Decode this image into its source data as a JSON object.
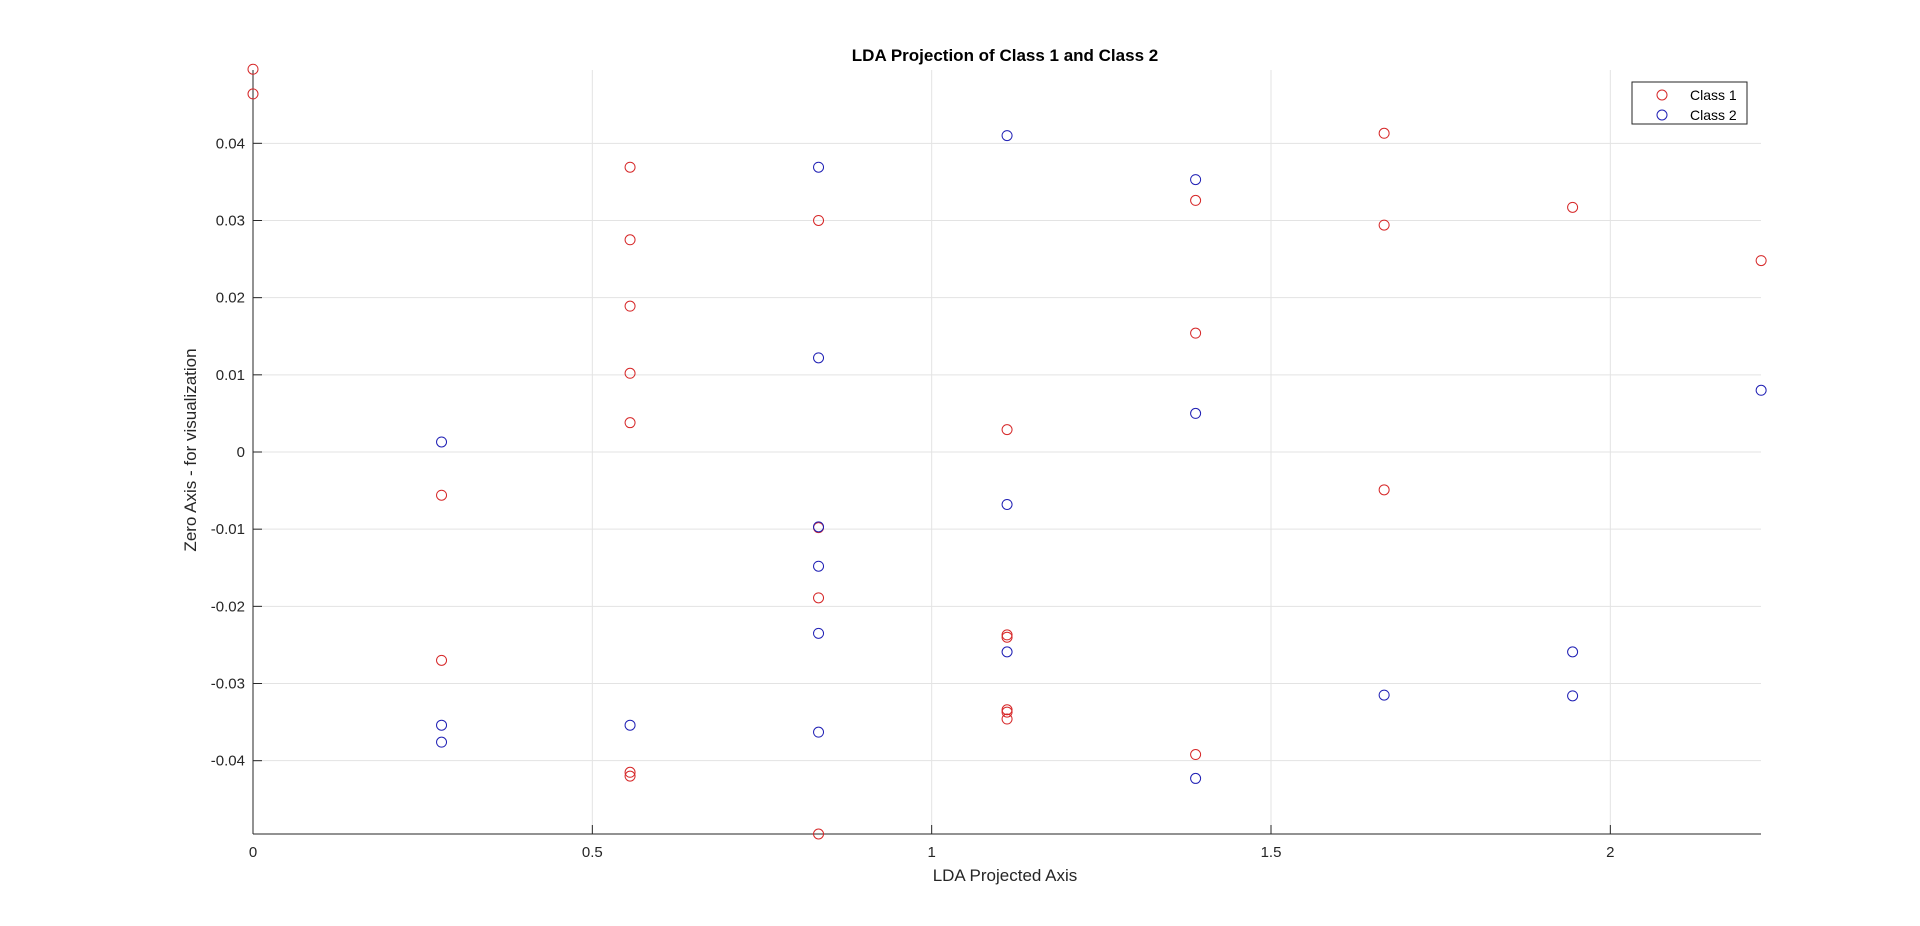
{
  "chart_data": {
    "type": "scatter",
    "title": "LDA Projection of Class 1 and Class 2",
    "xlabel": "LDA Projected Axis",
    "ylabel": "Zero Axis - for visualization",
    "xlim": [
      0,
      2.222
    ],
    "ylim": [
      -0.0495,
      0.0495
    ],
    "xticks": [
      0,
      0.5,
      1,
      1.5,
      2
    ],
    "xtick_labels": [
      "0",
      "0.5",
      "1",
      "1.5",
      "2"
    ],
    "yticks": [
      -0.04,
      -0.03,
      -0.02,
      -0.01,
      0,
      0.01,
      0.02,
      0.03,
      0.04
    ],
    "ytick_labels": [
      "-0.04",
      "-0.03",
      "-0.02",
      "-0.01",
      "0",
      "0.01",
      "0.02",
      "0.03",
      "0.04"
    ],
    "grid": true,
    "legend_position": "top-right",
    "marker": "open-circle",
    "series": [
      {
        "name": "Class 1",
        "color": "#d62728",
        "points": [
          [
            0,
            0.0496
          ],
          [
            0,
            0.0464
          ],
          [
            0.2778,
            -0.0056
          ],
          [
            0.2778,
            -0.027
          ],
          [
            0.5556,
            0.0369
          ],
          [
            0.5556,
            0.0275
          ],
          [
            0.5556,
            0.0189
          ],
          [
            0.5556,
            0.0102
          ],
          [
            0.5556,
            0.0038
          ],
          [
            0.5556,
            -0.0415
          ],
          [
            0.5556,
            -0.042
          ],
          [
            0.8333,
            0.03
          ],
          [
            0.8333,
            -0.0098
          ],
          [
            0.8333,
            -0.0189
          ],
          [
            0.8333,
            -0.0495
          ],
          [
            1.1111,
            0.0029
          ],
          [
            1.1111,
            -0.0237
          ],
          [
            1.1111,
            -0.024
          ],
          [
            1.1111,
            -0.0334
          ],
          [
            1.1111,
            -0.0337
          ],
          [
            1.1111,
            -0.0346
          ],
          [
            1.3889,
            0.0326
          ],
          [
            1.3889,
            0.0154
          ],
          [
            1.3889,
            -0.0392
          ],
          [
            1.6667,
            0.0413
          ],
          [
            1.6667,
            0.0294
          ],
          [
            1.6667,
            -0.0049
          ],
          [
            1.9444,
            0.0317
          ],
          [
            2.2222,
            0.0248
          ]
        ]
      },
      {
        "name": "Class 2",
        "color": "#1f1fb4",
        "points": [
          [
            0.2778,
            0.0013
          ],
          [
            0.2778,
            -0.0354
          ],
          [
            0.2778,
            -0.0376
          ],
          [
            0.5556,
            -0.0354
          ],
          [
            0.8333,
            0.0369
          ],
          [
            0.8333,
            0.0122
          ],
          [
            0.8333,
            -0.0097
          ],
          [
            0.8333,
            -0.0148
          ],
          [
            0.8333,
            -0.0235
          ],
          [
            0.8333,
            -0.0363
          ],
          [
            1.1111,
            0.041
          ],
          [
            1.1111,
            -0.0068
          ],
          [
            1.1111,
            -0.0259
          ],
          [
            1.3889,
            0.0353
          ],
          [
            1.3889,
            0.005
          ],
          [
            1.3889,
            -0.0423
          ],
          [
            1.6667,
            -0.0315
          ],
          [
            1.9444,
            -0.0259
          ],
          [
            1.9444,
            -0.0316
          ],
          [
            2.2222,
            0.008
          ]
        ]
      }
    ]
  }
}
